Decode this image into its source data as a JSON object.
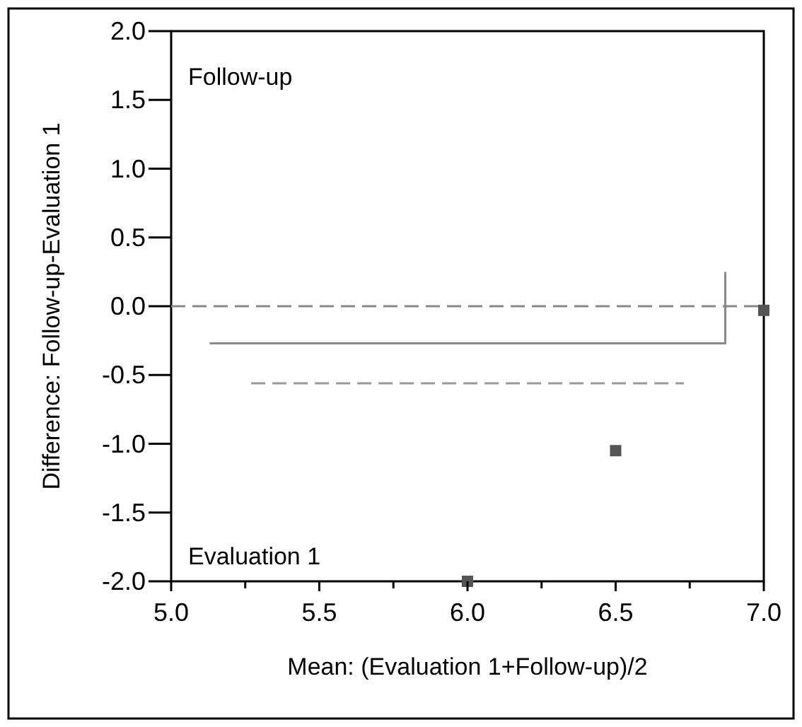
{
  "chart_data": {
    "type": "scatter",
    "xlabel": "Mean: (Evaluation 1+Follow-up)/2",
    "ylabel": "Difference: Follow-up-Evaluation 1",
    "xlim": [
      5.0,
      7.0
    ],
    "ylim": [
      -2.0,
      2.0
    ],
    "xticks": [
      {
        "value": 5,
        "label": "5.0"
      },
      {
        "value": 5.25,
        "label": null
      },
      5.5,
      {
        "value": 5.75,
        "label": null
      },
      {
        "value": 6,
        "label": "6.0"
      },
      {
        "value": 6.25,
        "label": null
      },
      6.5,
      {
        "value": 6.75,
        "label": null
      },
      {
        "value": 7,
        "label": "7.0"
      }
    ],
    "yticks": [
      {
        "value": -2,
        "label": "-2.0"
      },
      -1.5,
      {
        "value": -1,
        "label": "-1.0"
      },
      -0.5,
      {
        "value": 0,
        "label": "0.0"
      },
      0.5,
      {
        "value": 1,
        "label": "1.0"
      },
      1.5,
      {
        "value": 2,
        "label": "2.0"
      }
    ],
    "series": [
      {
        "color": "#555555",
        "marker": "square",
        "x": [
          6.0,
          6.5,
          7.0
        ],
        "values": [
          -2.0,
          -1.05,
          -0.03
        ]
      },
      {
        "type": "line",
        "color": "#888888",
        "line_style": "solid",
        "marker": "none",
        "x": [
          5.13,
          6.87,
          6.87
        ],
        "values": [
          -0.27,
          -0.27,
          0.25
        ]
      },
      {
        "type": "line",
        "color": "#999999",
        "line_style": "dashed",
        "marker": "none",
        "x": [
          5.27,
          6.73
        ],
        "values": [
          -0.56,
          -0.56
        ]
      }
    ],
    "ref_lines": [
      {
        "axis": "y",
        "value": 0,
        "label": null,
        "color": "#888888",
        "line_style": "dashed"
      }
    ],
    "annotations": [
      "Follow-up",
      "Evaluation 1"
    ],
    "grid": false
  }
}
